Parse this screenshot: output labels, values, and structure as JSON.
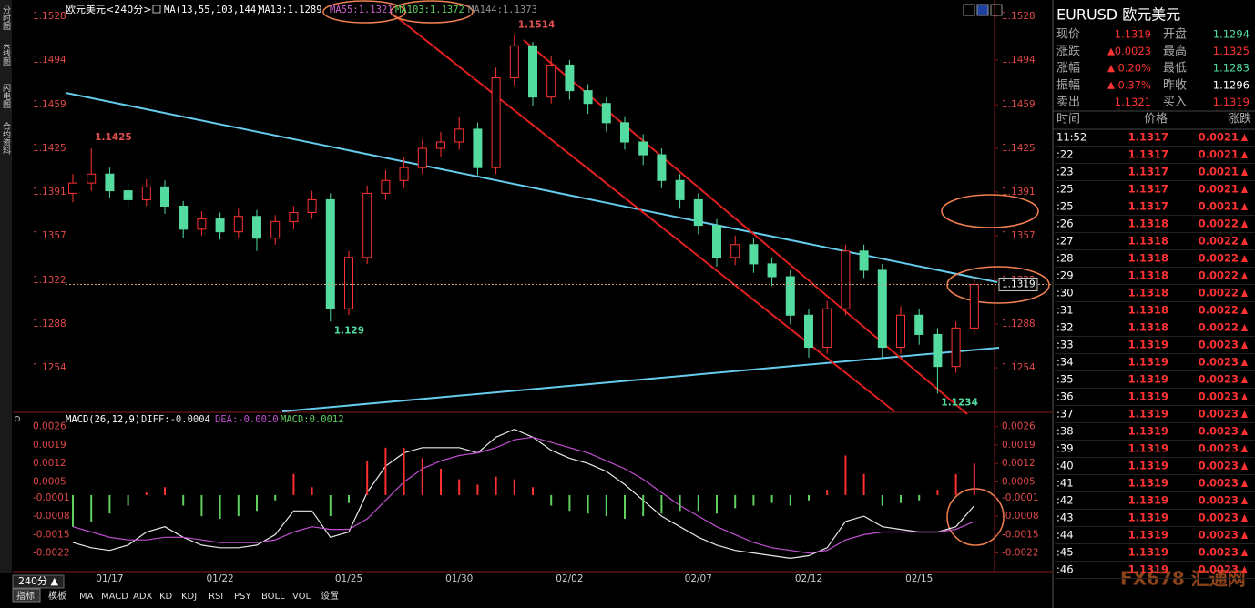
{
  "sidebar": [
    "分时图",
    "K线图",
    "闪电图",
    "合约资料"
  ],
  "chart_data": [
    {
      "type": "candlestick",
      "title": "欧元美元<240分>",
      "indicator": "MA(13,55,103,144)",
      "ma_labels": [
        {
          "text": "MA13:1.1289",
          "color": "#ffffff"
        },
        {
          "text": "MA55:1.1321",
          "color": "#d060d0"
        },
        {
          "text": "MA103:1.1372",
          "color": "#60d060"
        },
        {
          "text": "MA144:1.1373",
          "color": "#909090"
        }
      ],
      "up_color": "#ff3232",
      "down_color": "#54dca0",
      "categories": [
        null,
        null,
        "01/17",
        null,
        null,
        null,
        null,
        null,
        "01/22",
        null,
        null,
        null,
        null,
        null,
        null,
        "01/25",
        null,
        null,
        null,
        null,
        null,
        "01/30",
        null,
        null,
        null,
        null,
        null,
        "02/02",
        null,
        null,
        null,
        null,
        null,
        null,
        "02/07",
        null,
        null,
        null,
        null,
        null,
        "02/12",
        null,
        null,
        null,
        null,
        null,
        "02/15",
        null,
        null,
        null
      ],
      "open": [
        1.139,
        1.1398,
        1.1405,
        1.1392,
        1.1385,
        1.1395,
        1.138,
        1.1362,
        1.137,
        1.136,
        1.1372,
        1.1355,
        1.1368,
        1.1375,
        1.1385,
        1.13,
        1.134,
        1.139,
        1.14,
        1.141,
        1.1425,
        1.143,
        1.144,
        1.141,
        1.148,
        1.1505,
        1.1465,
        1.149,
        1.147,
        1.146,
        1.1445,
        1.143,
        1.142,
        1.14,
        1.1385,
        1.1365,
        1.134,
        1.135,
        1.1335,
        1.1325,
        1.1295,
        1.127,
        1.13,
        1.1345,
        1.133,
        1.127,
        1.1295,
        1.128,
        1.1255,
        1.1285
      ],
      "high": [
        1.1405,
        1.1425,
        1.141,
        1.1398,
        1.1401,
        1.14,
        1.1384,
        1.1376,
        1.1375,
        1.1378,
        1.1377,
        1.1373,
        1.138,
        1.1392,
        1.139,
        1.1345,
        1.1396,
        1.1408,
        1.1418,
        1.1432,
        1.1438,
        1.145,
        1.1445,
        1.1488,
        1.1514,
        1.1508,
        1.1497,
        1.1494,
        1.1475,
        1.1465,
        1.145,
        1.1436,
        1.1425,
        1.1405,
        1.139,
        1.137,
        1.1357,
        1.1355,
        1.134,
        1.133,
        1.13,
        1.1306,
        1.135,
        1.135,
        1.1335,
        1.1302,
        1.13,
        1.1285,
        1.129,
        1.1325
      ],
      "low": [
        1.1383,
        1.1392,
        1.1386,
        1.1378,
        1.138,
        1.1374,
        1.1355,
        1.1357,
        1.1354,
        1.1355,
        1.1345,
        1.135,
        1.1362,
        1.137,
        1.129,
        1.1295,
        1.1335,
        1.1385,
        1.1394,
        1.1405,
        1.1418,
        1.1424,
        1.1404,
        1.1405,
        1.1474,
        1.1458,
        1.146,
        1.1463,
        1.1452,
        1.1438,
        1.1424,
        1.1412,
        1.1394,
        1.1378,
        1.1358,
        1.1333,
        1.1334,
        1.1328,
        1.1318,
        1.1288,
        1.1262,
        1.1265,
        1.1295,
        1.1324,
        1.1262,
        1.1265,
        1.1272,
        1.1234,
        1.125,
        1.128
      ],
      "close": [
        1.1398,
        1.1405,
        1.1392,
        1.1385,
        1.1395,
        1.138,
        1.1362,
        1.137,
        1.136,
        1.1372,
        1.1355,
        1.1368,
        1.1375,
        1.1385,
        1.13,
        1.134,
        1.139,
        1.14,
        1.141,
        1.1425,
        1.143,
        1.144,
        1.141,
        1.148,
        1.1505,
        1.1465,
        1.149,
        1.147,
        1.146,
        1.1445,
        1.143,
        1.142,
        1.14,
        1.1385,
        1.1365,
        1.134,
        1.135,
        1.1335,
        1.1325,
        1.1295,
        1.127,
        1.13,
        1.1345,
        1.133,
        1.127,
        1.1295,
        1.128,
        1.1255,
        1.1285,
        1.1319
      ],
      "ylim": [
        1.122,
        1.1535
      ],
      "yticks": [
        1.1528,
        1.1494,
        1.1459,
        1.1425,
        1.1391,
        1.1357,
        1.1322,
        1.1288,
        1.1254
      ]
    },
    {
      "type": "macd",
      "title": "MACD(26,12,9)",
      "ylim": [
        -0.0028,
        0.0029
      ],
      "yticks": [
        0.0026,
        0.0019,
        0.0012,
        0.0005,
        -0.0001,
        -0.0008,
        -0.0015,
        -0.0022
      ],
      "up_color": "#ff3030",
      "down_color": "#60d060",
      "series": [
        {
          "label": "DIFF:-0.0004",
          "style": "line",
          "color": "#e8e8e8",
          "values": [
            -0.0018,
            -0.002,
            -0.0021,
            -0.0019,
            -0.0014,
            -0.0012,
            -0.0016,
            -0.0019,
            -0.002,
            -0.002,
            -0.0019,
            -0.0015,
            -0.0006,
            -0.0006,
            -0.0016,
            -0.0014,
            0.0001,
            0.0011,
            0.0016,
            0.0018,
            0.0018,
            0.0018,
            0.0016,
            0.0022,
            0.0025,
            0.0022,
            0.0017,
            0.0014,
            0.0012,
            0.0009,
            0.0004,
            -0.0002,
            -0.0008,
            -0.0012,
            -0.0016,
            -0.0019,
            -0.0021,
            -0.0022,
            -0.0023,
            -0.0024,
            -0.0023,
            -0.002,
            -0.001,
            -0.0008,
            -0.0012,
            -0.0013,
            -0.0014,
            -0.0014,
            -0.0012,
            -0.0004
          ]
        },
        {
          "label": "DEA:-0.0010",
          "style": "line",
          "color": "#c050d0",
          "values": [
            -0.0012,
            -0.0014,
            -0.0016,
            -0.0017,
            -0.0017,
            -0.0016,
            -0.0016,
            -0.0017,
            -0.0018,
            -0.0018,
            -0.0018,
            -0.0017,
            -0.0014,
            -0.0012,
            -0.0013,
            -0.0013,
            -0.0009,
            -0.0002,
            0.0005,
            0.001,
            0.0013,
            0.0015,
            0.0016,
            0.0018,
            0.0021,
            0.0022,
            0.002,
            0.0018,
            0.0016,
            0.0013,
            0.001,
            0.0006,
            0.0001,
            -0.0004,
            -0.0008,
            -0.0012,
            -0.0015,
            -0.0018,
            -0.002,
            -0.0021,
            -0.0022,
            -0.0021,
            -0.0017,
            -0.0015,
            -0.0014,
            -0.0014,
            -0.0014,
            -0.0014,
            -0.0013,
            -0.001
          ]
        },
        {
          "label": "MACD:0.0012",
          "style": "histogram",
          "color": "#60d060",
          "values": [
            -0.0012,
            -0.001,
            -0.0007,
            -0.0004,
            0.0001,
            0.0003,
            -0.0004,
            -0.0008,
            -0.0009,
            -0.0008,
            -0.0006,
            -0.0002,
            0.0008,
            0.0003,
            -0.0008,
            -0.0003,
            0.0013,
            0.0018,
            0.0018,
            0.0014,
            0.001,
            0.0006,
            0.0004,
            0.0007,
            0.0006,
            0.0003,
            -0.0004,
            -0.0006,
            -0.0007,
            -0.0008,
            -0.0009,
            -0.0008,
            -0.0007,
            -0.0006,
            -0.0006,
            -0.0007,
            -0.0005,
            -0.0004,
            -0.0003,
            -0.0004,
            -0.0002,
            0.0002,
            0.0015,
            0.0008,
            -0.0004,
            -0.0003,
            -0.0002,
            0.0002,
            0.0008,
            0.0012
          ]
        }
      ]
    }
  ],
  "quote": {
    "title": "EURUSD 欧元美元",
    "rows": [
      [
        {
          "label": "现价",
          "value": "1.1319",
          "color": "#ff3232"
        },
        {
          "label": "开盘",
          "value": "1.1294",
          "color": "#54dca0"
        }
      ],
      [
        {
          "label": "涨跌",
          "value": "0.0023",
          "color": "#ff3232",
          "arrow": true
        },
        {
          "label": "最高",
          "value": "1.1325",
          "color": "#ff3232"
        }
      ],
      [
        {
          "label": "涨幅",
          "value": "0.20%",
          "color": "#ff3232",
          "arrow": true
        },
        {
          "label": "最低",
          "value": "1.1283",
          "color": "#54dca0"
        }
      ],
      [
        {
          "label": "振幅",
          "value": "0.37%",
          "color": "#ff3232",
          "arrow": true
        },
        {
          "label": "昨收",
          "value": "1.1296",
          "color": "#ffffff"
        }
      ],
      [
        {
          "label": "卖出",
          "value": "1.1321",
          "color": "#ff3232"
        },
        {
          "label": "买入",
          "value": "1.1319",
          "color": "#ff3232"
        }
      ]
    ]
  },
  "ticks": {
    "header": [
      "时间",
      "价格",
      "涨跌"
    ],
    "rows": [
      [
        "11:52",
        "1.1317",
        "0.0021"
      ],
      [
        ":22",
        "1.1317",
        "0.0021"
      ],
      [
        ":23",
        "1.1317",
        "0.0021"
      ],
      [
        ":25",
        "1.1317",
        "0.0021"
      ],
      [
        ":25",
        "1.1317",
        "0.0021"
      ],
      [
        ":26",
        "1.1318",
        "0.0022"
      ],
      [
        ":27",
        "1.1318",
        "0.0022"
      ],
      [
        ":28",
        "1.1318",
        "0.0022"
      ],
      [
        ":29",
        "1.1318",
        "0.0022"
      ],
      [
        ":30",
        "1.1318",
        "0.0022"
      ],
      [
        ":31",
        "1.1318",
        "0.0022"
      ],
      [
        ":32",
        "1.1318",
        "0.0022"
      ],
      [
        ":33",
        "1.1319",
        "0.0023"
      ],
      [
        ":34",
        "1.1319",
        "0.0023"
      ],
      [
        ":35",
        "1.1319",
        "0.0023"
      ],
      [
        ":36",
        "1.1319",
        "0.0023"
      ],
      [
        ":37",
        "1.1319",
        "0.0023"
      ],
      [
        ":38",
        "1.1319",
        "0.0023"
      ],
      [
        ":39",
        "1.1319",
        "0.0023"
      ],
      [
        ":40",
        "1.1319",
        "0.0023"
      ],
      [
        ":41",
        "1.1319",
        "0.0023"
      ],
      [
        ":42",
        "1.1319",
        "0.0023"
      ],
      [
        ":43",
        "1.1319",
        "0.0023"
      ],
      [
        ":44",
        "1.1319",
        "0.0023"
      ],
      [
        ":45",
        "1.1319",
        "0.0023"
      ],
      [
        ":46",
        "1.1319",
        "0.0023"
      ]
    ]
  },
  "toolbar": {
    "period": "240分 ▲",
    "tabs": [
      "指标",
      "模板",
      "MA",
      "MACD",
      "ADX",
      "KD",
      "KDJ",
      "RSI",
      "PSY",
      "BOLL",
      "VOL",
      "设置"
    ]
  },
  "watermark": "FX678 汇通网"
}
